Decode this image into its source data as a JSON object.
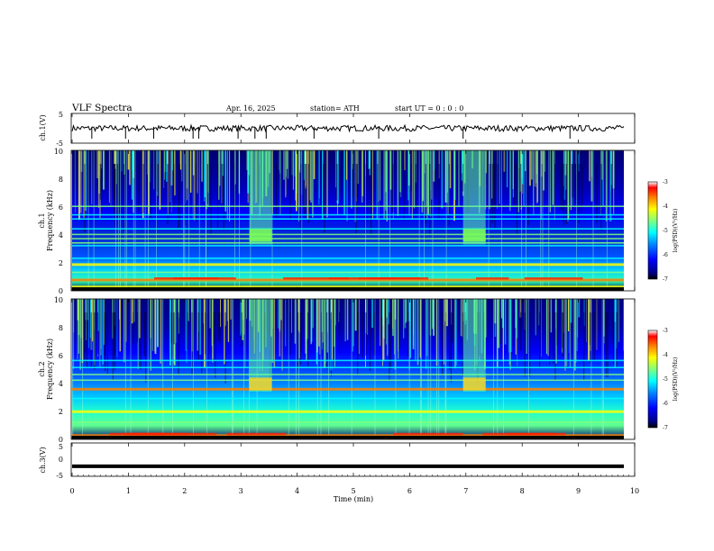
{
  "header": {
    "title": "VLF  Spectra",
    "date": "Apr. 16, 2025",
    "station": "station= ATH",
    "start_ut": "start  UT  =    0  : 0   : 0"
  },
  "colors": {
    "jet": [
      "#00007f",
      "#0000ff",
      "#007fff",
      "#00ffff",
      "#7fff7f",
      "#ffff00",
      "#ff7f00",
      "#ff0000",
      "#7f0000"
    ],
    "waveform": "#000000"
  },
  "chart_data": [
    {
      "type": "line",
      "panel": "ch1-waveform",
      "ylabel": "ch.1(V)",
      "ylim": [
        -5,
        5
      ],
      "ytick_labels": [
        "5",
        "-5"
      ],
      "xlim": [
        0,
        10
      ],
      "approx_level": 0,
      "approx_amplitude": 1,
      "spikes_at_min": [
        0.35,
        0.95,
        1.45,
        2.15,
        2.25,
        2.95,
        3.25,
        3.45,
        4.3,
        5.45,
        6.95,
        8.85
      ]
    },
    {
      "type": "heatmap",
      "panel": "ch1-spectrogram",
      "ylabel": "ch.1\nFrequency  (kHz)",
      "ylabel_ch": "ch.1",
      "ylabel_freq": "Frequency  (kHz)",
      "ylim": [
        0,
        10
      ],
      "ytick_labels": [
        "0",
        "2",
        "4",
        "6",
        "8",
        "10"
      ],
      "xlim": [
        0,
        10
      ],
      "colorbar": {
        "label": "log(PSD)(V²/Hz)",
        "range": [
          -7,
          -3
        ],
        "tick_labels": [
          "-3",
          "-4",
          "-5",
          "-6",
          "-7"
        ]
      },
      "bands_khz": [
        0.3,
        0.8,
        1.3,
        1.9,
        2.3,
        3.2,
        3.4,
        3.7,
        4.0,
        4.4,
        5.1,
        5.4,
        6.0
      ],
      "bursts_min": [
        [
          3.15,
          3.55
        ],
        [
          6.95,
          7.35
        ]
      ]
    },
    {
      "type": "heatmap",
      "panel": "ch2-spectrogram",
      "ylabel": "ch.2\nFrequency  (kHz)",
      "ylabel_ch": "ch.2",
      "ylabel_freq": "Frequency  (kHz)",
      "ylim": [
        0,
        10
      ],
      "ytick_labels": [
        "0",
        "2",
        "4",
        "6",
        "8",
        "10"
      ],
      "xlim": [
        0,
        10
      ],
      "colorbar": {
        "label": "log(PSD)(V²/Hz)",
        "range": [
          -7,
          -3
        ],
        "tick_labels": [
          "-3",
          "-4",
          "-5",
          "-6",
          "-7"
        ]
      },
      "bands_khz": [
        0.3,
        1.2,
        1.9,
        2.0,
        2.9,
        3.6,
        4.2,
        4.6,
        5.1,
        5.6
      ],
      "bursts_min": [
        [
          3.15,
          3.55
        ],
        [
          6.95,
          7.35
        ]
      ]
    },
    {
      "type": "line",
      "panel": "ch3-waveform",
      "ylabel": "ch.3(V)",
      "ylim": [
        -5,
        5
      ],
      "ytick_labels": [
        "5",
        "0",
        "-5"
      ],
      "xlim": [
        0,
        10
      ],
      "xlabel": "Time  (min)",
      "xtick_labels": [
        "0",
        "1",
        "2",
        "3",
        "4",
        "5",
        "6",
        "7",
        "8",
        "9",
        "10"
      ],
      "approx_level": -2
    }
  ]
}
